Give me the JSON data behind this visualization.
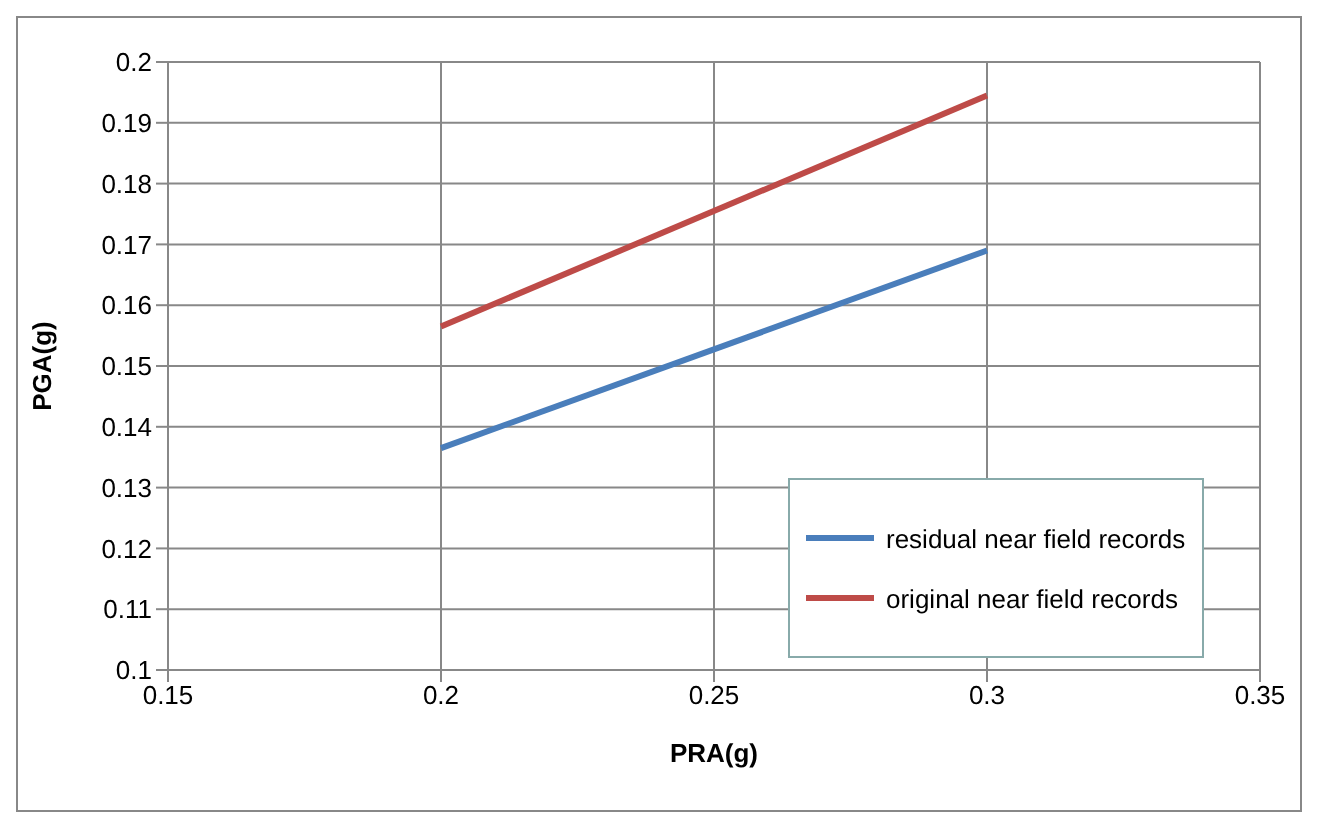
{
  "chart_data": {
    "type": "line",
    "xlabel": "PRA(g)",
    "ylabel": "PGA(g)",
    "x": [
      0.2,
      0.3
    ],
    "series": [
      {
        "name": "residual near field records",
        "color": "#4a7ebb",
        "values": [
          0.1365,
          0.169
        ]
      },
      {
        "name": "original near field records",
        "color": "#be4b48",
        "values": [
          0.1565,
          0.1945
        ]
      }
    ],
    "xlim": [
      0.15,
      0.35
    ],
    "xticks": [
      0.15,
      0.2,
      0.25,
      0.3,
      0.35
    ],
    "ylim": [
      0.1,
      0.2
    ],
    "yticks": [
      0.1,
      0.11,
      0.12,
      0.13,
      0.14,
      0.15,
      0.16,
      0.17,
      0.18,
      0.19,
      0.2
    ],
    "grid": true,
    "legend": "bottom right",
    "marker": "none",
    "line_style": "solid"
  }
}
